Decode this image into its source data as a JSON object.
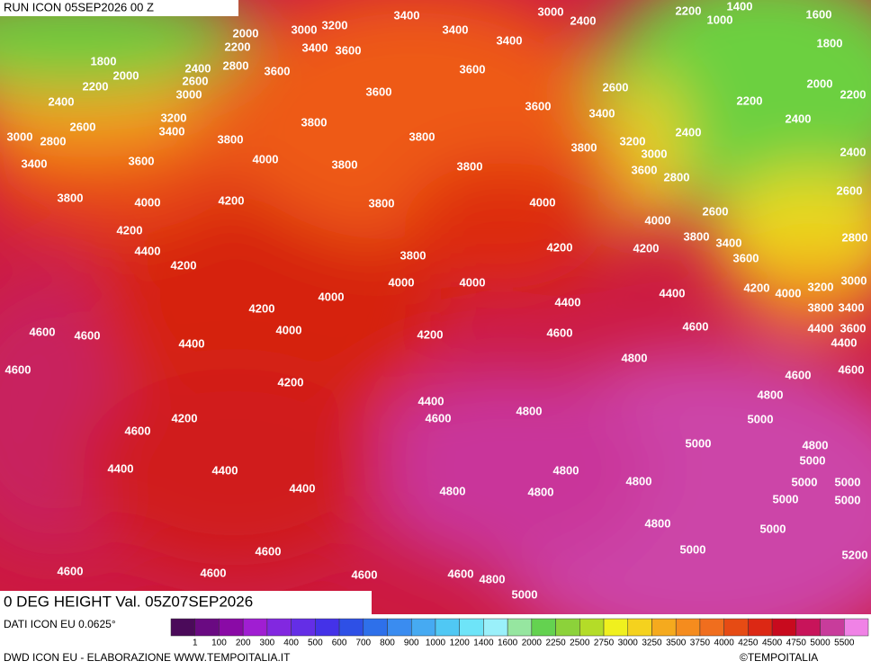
{
  "header": {
    "run": "RUN ICON 05SEP2026 00 Z",
    "field": "0 DEG HEIGHT Val. 05Z07SEP2026"
  },
  "footer": {
    "source": "DATI ICON EU 0.0625°",
    "credit": "DWD ICON EU - ELABORAZIONE WWW.TEMPOITALIA.IT",
    "copyright": "©TEMPOITALIA"
  },
  "legend": {
    "labels": [
      1,
      100,
      200,
      300,
      400,
      500,
      600,
      700,
      800,
      900,
      1000,
      1200,
      1400,
      1600,
      2000,
      2250,
      2500,
      2750,
      3000,
      3250,
      3500,
      3750,
      4000,
      4250,
      4500,
      4750,
      5000,
      5500
    ],
    "colors": [
      "#4b0a5a",
      "#6a0a82",
      "#8a0aa6",
      "#a01ed2",
      "#8228e0",
      "#642ee6",
      "#4432e8",
      "#2e50e6",
      "#2e70ea",
      "#3a8cf0",
      "#46aaf2",
      "#50c8f4",
      "#6ee4f8",
      "#9af0fa",
      "#96e6a0",
      "#64d250",
      "#8cd23a",
      "#b4dc28",
      "#f0f01e",
      "#f5d21e",
      "#f5aa1e",
      "#f58c1e",
      "#f06e1e",
      "#e64b14",
      "#dc2814",
      "#c80a1e",
      "#c8145a",
      "#c83c9b",
      "#f082e6"
    ]
  },
  "map": {
    "contour_labels": [
      3400,
      3000,
      2400,
      2200,
      1400,
      1600,
      2000,
      3000,
      3200,
      3400,
      3400,
      1000,
      1800,
      2200,
      3400,
      3600,
      1800,
      2400,
      2800,
      3600,
      3600,
      2000,
      2600,
      2200,
      2000,
      2600,
      3000,
      3600,
      2200,
      2400,
      3600,
      3400,
      2200,
      3200,
      2600,
      3400,
      2400,
      3800,
      2400,
      3000,
      2800,
      3800,
      3800,
      3200,
      3800,
      3000,
      3400,
      3600,
      4000,
      3800,
      3800,
      3600,
      2400,
      2800,
      2600,
      3800,
      4000,
      4200,
      3800,
      4000,
      4000,
      2600,
      4200,
      2800,
      3800,
      3400,
      4400,
      4200,
      4200,
      3800,
      3600,
      4200,
      4000,
      4000,
      4200,
      4000,
      3200,
      3000,
      4400,
      4000,
      4200,
      4400,
      3800,
      3400,
      4600,
      4600,
      4000,
      4200,
      4600,
      4600,
      4400,
      3600,
      4400,
      4400,
      4600,
      4800,
      4600,
      4600,
      4200,
      4800,
      4400,
      4800,
      4200,
      4600,
      5000,
      4600,
      5000,
      4800,
      5000,
      4400,
      4400,
      4800,
      4800,
      5000,
      5000,
      4400,
      4800,
      4800,
      5000,
      5000,
      4800,
      5000,
      5000,
      4600,
      5200,
      4600,
      4600,
      4600,
      4600,
      4800,
      5000
    ]
  }
}
